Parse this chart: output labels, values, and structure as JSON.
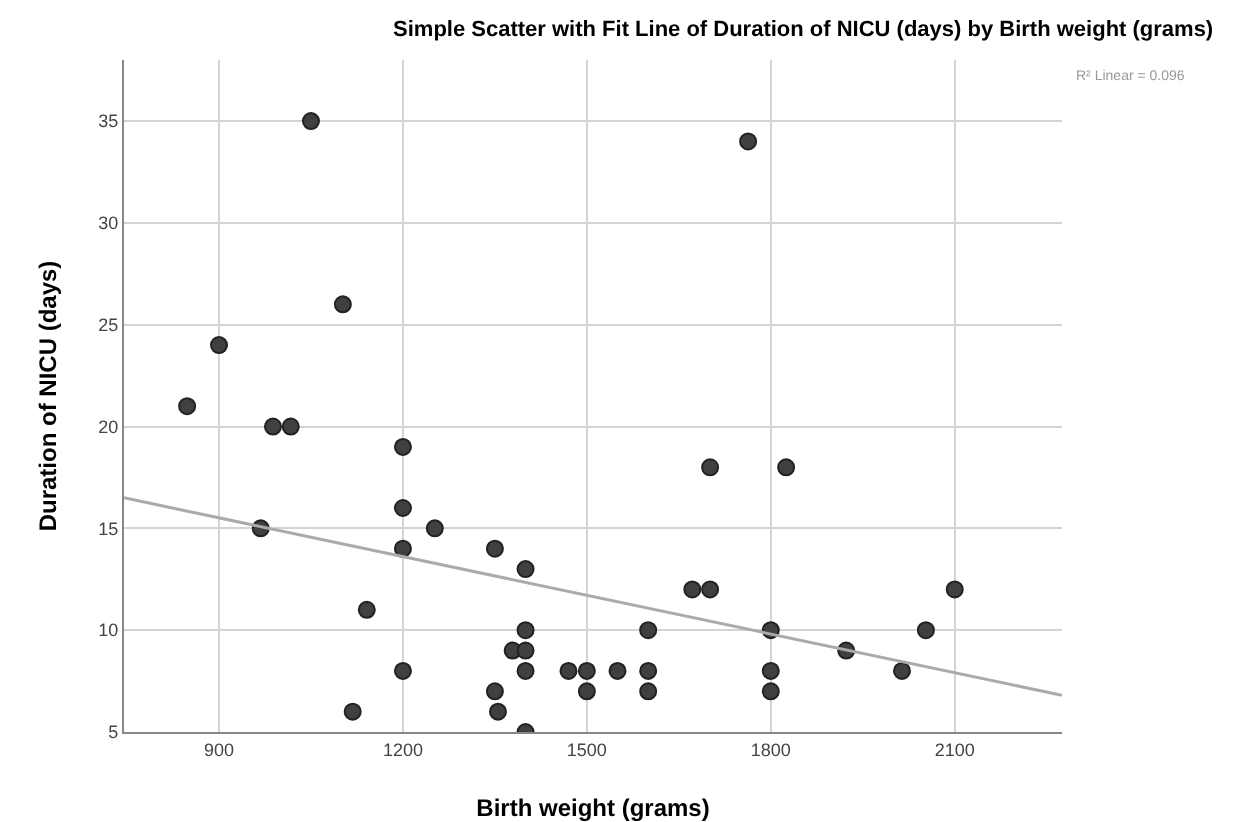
{
  "chart_data": {
    "type": "scatter",
    "title": "Simple Scatter with Fit Line of Duration of NICU (days) by Birth weight (grams)",
    "xlabel": "Birth weight (grams)",
    "ylabel": "Duration of NICU (days)",
    "xlim": [
      745,
      2275
    ],
    "xticks": [
      900,
      1200,
      1500,
      1800,
      2100
    ],
    "ylim": [
      5,
      38
    ],
    "yticks": [
      5,
      10,
      15,
      20,
      25,
      30,
      35
    ],
    "grid": true,
    "annotations": [
      "R² Linear = 0.096"
    ],
    "series": [
      {
        "marker": "circle",
        "color": "#404040",
        "x": [
          1050,
          1102,
          900,
          848,
          988,
          1017,
          1200,
          1200,
          968,
          1252,
          1200,
          1350,
          1400,
          1141,
          1400,
          1379,
          1400,
          1200,
          1400,
          1470,
          1500,
          1550,
          1600,
          1500,
          1600,
          1600,
          1350,
          1355,
          1118,
          1400,
          1763,
          1701,
          1825,
          1672,
          1701,
          1800,
          1923,
          2014,
          2053,
          2100,
          1800,
          1800
        ],
        "values": [
          35,
          26,
          24,
          21,
          20,
          20,
          19,
          16,
          15,
          15,
          14,
          14,
          13,
          11,
          10,
          9,
          9,
          8,
          8,
          8,
          8,
          8,
          8,
          7,
          7,
          10,
          7,
          6,
          6,
          5,
          34,
          18,
          18,
          12,
          12,
          10,
          9,
          8,
          10,
          12,
          8,
          7
        ]
      },
      {
        "type": "line",
        "marker": "none",
        "color": "#aaaaaa",
        "x": [
          745,
          2275
        ],
        "values": [
          16.5,
          6.8
        ]
      }
    ]
  }
}
